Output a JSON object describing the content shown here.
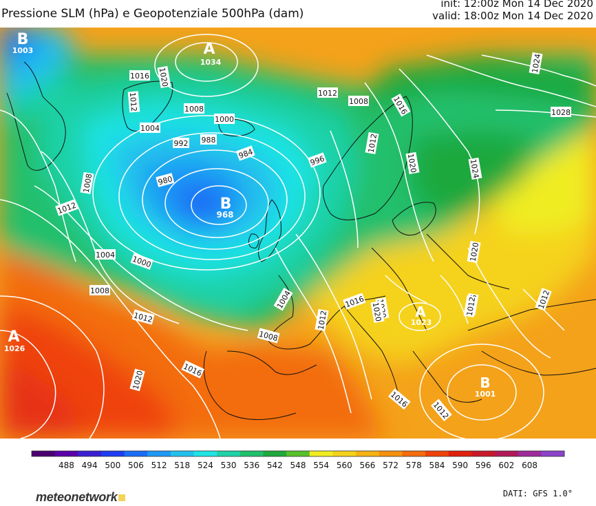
{
  "header": {
    "title": "Pressione SLM (hPa) e Geopotenziale 500hPa (dam)",
    "init": "init: 12:00z Mon 14 Dec 2020",
    "valid": "valid: 18:00z Mon 14 Dec 2020"
  },
  "map": {
    "highs": [
      {
        "letter": "A",
        "value": "1034"
      },
      {
        "letter": "A",
        "value": "1026"
      },
      {
        "letter": "A",
        "value": "1023"
      }
    ],
    "lows": [
      {
        "letter": "B",
        "value": "1003"
      },
      {
        "letter": "B",
        "value": "968"
      },
      {
        "letter": "B",
        "value": "1001"
      }
    ],
    "isobar_labels": [
      "1016",
      "1020",
      "1012",
      "1008",
      "1004",
      "1000",
      "992",
      "988",
      "984",
      "996",
      "980",
      "1012",
      "1008",
      "1004",
      "1000",
      "1012",
      "1008",
      "1016",
      "1020",
      "1012",
      "1008",
      "1012",
      "1016",
      "1020",
      "1024",
      "1028",
      "1020",
      "1024",
      "1016",
      "1012",
      "1016",
      "1020",
      "1012",
      "1016",
      "1012",
      "1020",
      "1008",
      "1004",
      "1012"
    ]
  },
  "legend": {
    "values": [
      "488",
      "494",
      "500",
      "506",
      "512",
      "518",
      "524",
      "530",
      "536",
      "542",
      "548",
      "554",
      "560",
      "566",
      "572",
      "578",
      "584",
      "590",
      "596",
      "602",
      "608"
    ],
    "colors": [
      "#4a0070",
      "#5a00a8",
      "#3a1fd0",
      "#1e3cf0",
      "#1a6cf5",
      "#1f98f5",
      "#22c0ec",
      "#1ee4e4",
      "#1fd2a8",
      "#20bf6c",
      "#1fa83c",
      "#58c02a",
      "#f0ec22",
      "#f5d21a",
      "#f6b214",
      "#f5900e",
      "#f36c0c",
      "#ef420a",
      "#e0200e",
      "#c8182a",
      "#b01858",
      "#9c2a9a",
      "#8a44c8"
    ]
  },
  "footer": {
    "logo": "meteonetwork",
    "source": "DATI: GFS 1.0°"
  }
}
